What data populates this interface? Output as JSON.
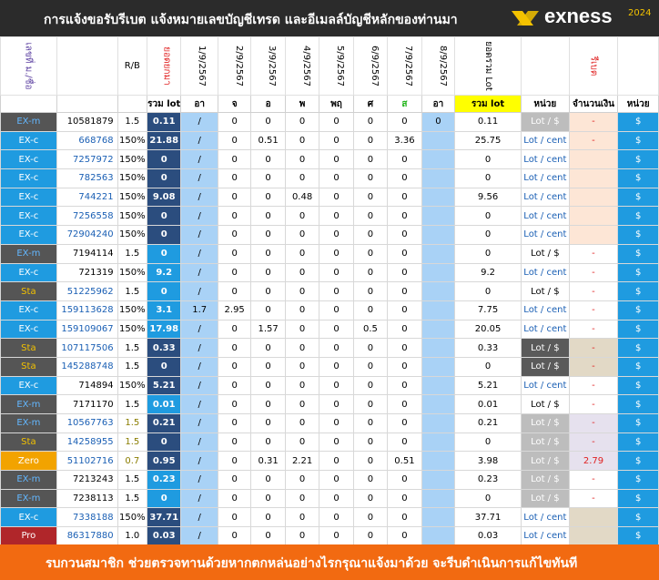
{
  "header": {
    "title": "การแจ้งขอรับรีเบต  แจ้งหมายเลขบัญชีเทรด และอีเมลล์บัญชีหลักของท่านมา",
    "brand": "exness",
    "year": "2024"
  },
  "columns": {
    "code": "เลขที่ ม./ชื่อ",
    "rb": "R/B",
    "lot_before": "ยอดยกมา",
    "dates": [
      "1/9/2567",
      "2/9/2567",
      "3/9/2567",
      "4/9/2567",
      "5/9/2567",
      "6/9/2567",
      "7/9/2567",
      "8/9/2567"
    ],
    "total_lot": "ยอดรวม Lot",
    "rebate": "รีเบต"
  },
  "subheaders": {
    "sum_lot": "รวม lot",
    "days": [
      "อา",
      "จ",
      "อ",
      "พ",
      "พฤ",
      "ศ",
      "ส",
      "อา"
    ],
    "total": "รวม lot",
    "unit": "หน่วย",
    "amount": "จำนวนเงิน",
    "unit2": "หน่วย"
  },
  "rows": [
    {
      "type": "EX-m",
      "style": "dark",
      "acct": "10581879",
      "acct_color": "black",
      "rb": "1.5",
      "lot": "0.11",
      "lot_style": "dark",
      "slash": "/",
      "d": [
        "0",
        "0",
        "0",
        "0",
        "0",
        "0",
        "0"
      ],
      "total": "0.11",
      "unit": "Lot / $",
      "unit_style": "gray",
      "amount": "-",
      "amount_bg": "#fde6d6",
      "cur": "$"
    },
    {
      "type": "EX-c",
      "style": "blue",
      "acct": "668768",
      "acct_color": "blue",
      "rb": "150%",
      "lot": "21.88",
      "lot_style": "dark",
      "slash": "/",
      "d": [
        "0",
        "0.51",
        "0",
        "0",
        "0",
        "3.36",
        ""
      ],
      "total": "25.75",
      "unit": "Lot / cent",
      "unit_style": "white",
      "amount": "-",
      "amount_bg": "#fde6d6",
      "cur": "$"
    },
    {
      "type": "EX-c",
      "style": "blue",
      "acct": "7257972",
      "acct_color": "blue",
      "rb": "150%",
      "lot": "0",
      "lot_style": "dark",
      "slash": "/",
      "d": [
        "0",
        "0",
        "0",
        "0",
        "0",
        "0",
        ""
      ],
      "total": "0",
      "unit": "Lot / cent",
      "unit_style": "white",
      "amount": "",
      "amount_bg": "#fde6d6",
      "cur": "$"
    },
    {
      "type": "EX-c",
      "style": "blue",
      "acct": "782563",
      "acct_color": "blue",
      "rb": "150%",
      "lot": "0",
      "lot_style": "dark",
      "slash": "/",
      "d": [
        "0",
        "0",
        "0",
        "0",
        "0",
        "0",
        ""
      ],
      "total": "0",
      "unit": "Lot / cent",
      "unit_style": "white",
      "amount": "",
      "amount_bg": "#fde6d6",
      "cur": "$"
    },
    {
      "type": "EX-c",
      "style": "blue",
      "acct": "744221",
      "acct_color": "blue",
      "rb": "150%",
      "lot": "9.08",
      "lot_style": "dark",
      "slash": "/",
      "d": [
        "0",
        "0",
        "0.48",
        "0",
        "0",
        "0",
        ""
      ],
      "total": "9.56",
      "unit": "Lot / cent",
      "unit_style": "white",
      "amount": "",
      "amount_bg": "#fde6d6",
      "cur": "$"
    },
    {
      "type": "EX-c",
      "style": "blue",
      "acct": "7256558",
      "acct_color": "blue",
      "rb": "150%",
      "lot": "0",
      "lot_style": "dark",
      "slash": "/",
      "d": [
        "0",
        "0",
        "0",
        "0",
        "0",
        "0",
        ""
      ],
      "total": "0",
      "unit": "Lot / cent",
      "unit_style": "white",
      "amount": "",
      "amount_bg": "#fde6d6",
      "cur": "$"
    },
    {
      "type": "EX-c",
      "style": "blue",
      "acct": "72904240",
      "acct_color": "blue",
      "rb": "150%",
      "lot": "0",
      "lot_style": "dark",
      "slash": "/",
      "d": [
        "0",
        "0",
        "0",
        "0",
        "0",
        "0",
        ""
      ],
      "total": "0",
      "unit": "Lot / cent",
      "unit_style": "white",
      "amount": "",
      "amount_bg": "#fde6d6",
      "cur": "$"
    },
    {
      "type": "EX-m",
      "style": "dark",
      "acct": "7194114",
      "acct_color": "black",
      "rb": "1.5",
      "lot": "0",
      "lot_style": "blue",
      "slash": "/",
      "d": [
        "0",
        "0",
        "0",
        "0",
        "0",
        "0",
        ""
      ],
      "total": "0",
      "unit": "Lot / $",
      "unit_style": "white",
      "amount": "-",
      "amount_bg": "#ffffff",
      "cur": "$"
    },
    {
      "type": "EX-c",
      "style": "blue",
      "acct": "721319",
      "acct_color": "black",
      "rb": "150%",
      "lot": "9.2",
      "lot_style": "blue",
      "slash": "/",
      "d": [
        "0",
        "0",
        "0",
        "0",
        "0",
        "0",
        ""
      ],
      "total": "9.2",
      "unit": "Lot / cent",
      "unit_style": "white",
      "amount": "-",
      "amount_bg": "#ffffff",
      "cur": "$"
    },
    {
      "type": "Sta",
      "style": "sta",
      "acct": "51225962",
      "acct_color": "blue",
      "rb": "1.5",
      "lot": "0",
      "lot_style": "blue",
      "slash": "/",
      "d": [
        "0",
        "0",
        "0",
        "0",
        "0",
        "0",
        ""
      ],
      "total": "0",
      "unit": "Lot / $",
      "unit_style": "white",
      "amount": "-",
      "amount_bg": "#ffffff",
      "cur": "$"
    },
    {
      "type": "EX-c",
      "style": "blue",
      "acct": "159113628",
      "acct_color": "blue",
      "rb": "150%",
      "lot": "3.1",
      "lot_style": "blue",
      "slash": "1.7",
      "d": [
        "2.95",
        "0",
        "0",
        "0",
        "0",
        "0",
        ""
      ],
      "total": "7.75",
      "unit": "Lot / cent",
      "unit_style": "white",
      "amount": "-",
      "amount_bg": "#ffffff",
      "cur": "$"
    },
    {
      "type": "EX-c",
      "style": "blue",
      "acct": "159109067",
      "acct_color": "blue",
      "rb": "150%",
      "lot": "17.98",
      "lot_style": "blue",
      "slash": "/",
      "d": [
        "0",
        "1.57",
        "0",
        "0",
        "0.5",
        "0",
        ""
      ],
      "total": "20.05",
      "unit": "Lot / cent",
      "unit_style": "white",
      "amount": "-",
      "amount_bg": "#ffffff",
      "cur": "$"
    },
    {
      "type": "Sta",
      "style": "sta",
      "acct": "107117506",
      "acct_color": "blue",
      "rb": "1.5",
      "lot": "0.33",
      "lot_style": "dark",
      "slash": "/",
      "d": [
        "0",
        "0",
        "0",
        "0",
        "0",
        "0",
        ""
      ],
      "total": "0.33",
      "unit": "Lot / $",
      "unit_style": "dark",
      "amount": "-",
      "amount_bg": "#e2d9c6",
      "cur": "$"
    },
    {
      "type": "Sta",
      "style": "sta",
      "acct": "145288748",
      "acct_color": "blue",
      "rb": "1.5",
      "lot": "0",
      "lot_style": "dark",
      "slash": "/",
      "d": [
        "0",
        "0",
        "0",
        "0",
        "0",
        "0",
        ""
      ],
      "total": "0",
      "unit": "Lot / $",
      "unit_style": "dark",
      "amount": "-",
      "amount_bg": "#e2d9c6",
      "cur": "$"
    },
    {
      "type": "EX-c",
      "style": "blue",
      "acct": "714894",
      "acct_color": "black",
      "rb": "150%",
      "lot": "5.21",
      "lot_style": "dark",
      "slash": "/",
      "d": [
        "0",
        "0",
        "0",
        "0",
        "0",
        "0",
        ""
      ],
      "total": "5.21",
      "unit": "Lot / cent",
      "unit_style": "white",
      "amount": "-",
      "amount_bg": "#ffffff",
      "cur": "$"
    },
    {
      "type": "EX-m",
      "style": "dark",
      "acct": "7171170",
      "acct_color": "black",
      "rb": "1.5",
      "lot": "0.01",
      "lot_style": "blue",
      "slash": "/",
      "d": [
        "0",
        "0",
        "0",
        "0",
        "0",
        "0",
        ""
      ],
      "total": "0.01",
      "unit": "Lot / $",
      "unit_style": "white",
      "amount": "-",
      "amount_bg": "#ffffff",
      "cur": "$"
    },
    {
      "type": "EX-m",
      "style": "dark",
      "acct": "10567763",
      "acct_color": "blue",
      "rb": "1.5",
      "rb_color": "olive",
      "lot": "0.21",
      "lot_style": "dark",
      "slash": "/",
      "d": [
        "0",
        "0",
        "0",
        "0",
        "0",
        "0",
        ""
      ],
      "total": "0.21",
      "unit": "Lot / $",
      "unit_style": "gray",
      "amount": "-",
      "amount_bg": "#e6e1ee",
      "cur": "$"
    },
    {
      "type": "Sta",
      "style": "sta",
      "acct": "14258955",
      "acct_color": "blue",
      "rb": "1.5",
      "rb_color": "olive",
      "lot": "0",
      "lot_style": "dark",
      "slash": "/",
      "d": [
        "0",
        "0",
        "0",
        "0",
        "0",
        "0",
        ""
      ],
      "total": "0",
      "unit": "Lot / $",
      "unit_style": "gray",
      "amount": "-",
      "amount_bg": "#e6e1ee",
      "cur": "$"
    },
    {
      "type": "Zero",
      "style": "zero",
      "acct": "51102716",
      "acct_color": "blue",
      "rb": "0.7",
      "rb_color": "olive",
      "lot": "0.95",
      "lot_style": "dark",
      "slash": "/",
      "d": [
        "0",
        "0.31",
        "2.21",
        "0",
        "0",
        "0.51",
        ""
      ],
      "total": "3.98",
      "unit": "Lot / $",
      "unit_style": "gray",
      "amount": "2.79",
      "amount_bg": "#e6e1ee",
      "amount_red": true,
      "cur": "$"
    },
    {
      "type": "EX-m",
      "style": "dark",
      "acct": "7213243",
      "acct_color": "black",
      "rb": "1.5",
      "lot": "0.23",
      "lot_style": "blue",
      "slash": "/",
      "d": [
        "0",
        "0",
        "0",
        "0",
        "0",
        "0",
        "hl"
      ],
      "total": "0.23",
      "unit": "Lot / $",
      "unit_style": "gray",
      "amount": "-",
      "amount_bg": "#ffffff",
      "cur": "$"
    },
    {
      "type": "EX-m",
      "style": "dark",
      "acct": "7238113",
      "acct_color": "black",
      "rb": "1.5",
      "lot": "0",
      "lot_style": "blue",
      "slash": "/",
      "d": [
        "0",
        "0",
        "0",
        "0",
        "0",
        "0",
        ""
      ],
      "total": "0",
      "unit": "Lot / $",
      "unit_style": "gray",
      "amount": "-",
      "amount_bg": "#ffffff",
      "cur": "$"
    },
    {
      "type": "EX-c",
      "style": "blue",
      "acct": "7338188",
      "acct_color": "blue",
      "rb": "150%",
      "lot": "37.71",
      "lot_style": "dark",
      "slash": "/",
      "d": [
        "0",
        "0",
        "0",
        "0",
        "0",
        "0",
        ""
      ],
      "total": "37.71",
      "unit": "Lot / cent",
      "unit_style": "white",
      "amount": "",
      "amount_bg": "#e2d9c6",
      "cur": "$"
    },
    {
      "type": "Pro",
      "style": "pro",
      "acct": "86317880",
      "acct_color": "blue",
      "rb": "1.0",
      "lot": "0.03",
      "lot_style": "dark",
      "slash": "/",
      "d": [
        "0",
        "0",
        "0",
        "0",
        "0",
        "0",
        ""
      ],
      "total": "0.03",
      "unit": "Lot / cent",
      "unit_style": "white",
      "amount": "",
      "amount_bg": "#e2d9c6",
      "cur": "$"
    }
  ],
  "footer": {
    "text": "รบกวนสมาชิก ช่วยตรวจทานด้วยหากตกหล่นอย่างไรกรุณาแจ้งมาด้วย จะรีบดำเนินการแก้ไขทันที"
  },
  "colors": {
    "topbar": "#2b2b2b",
    "accent_blue": "#1f9be0",
    "footer": "#f26a11",
    "brand_yellow": "#f3c200"
  }
}
